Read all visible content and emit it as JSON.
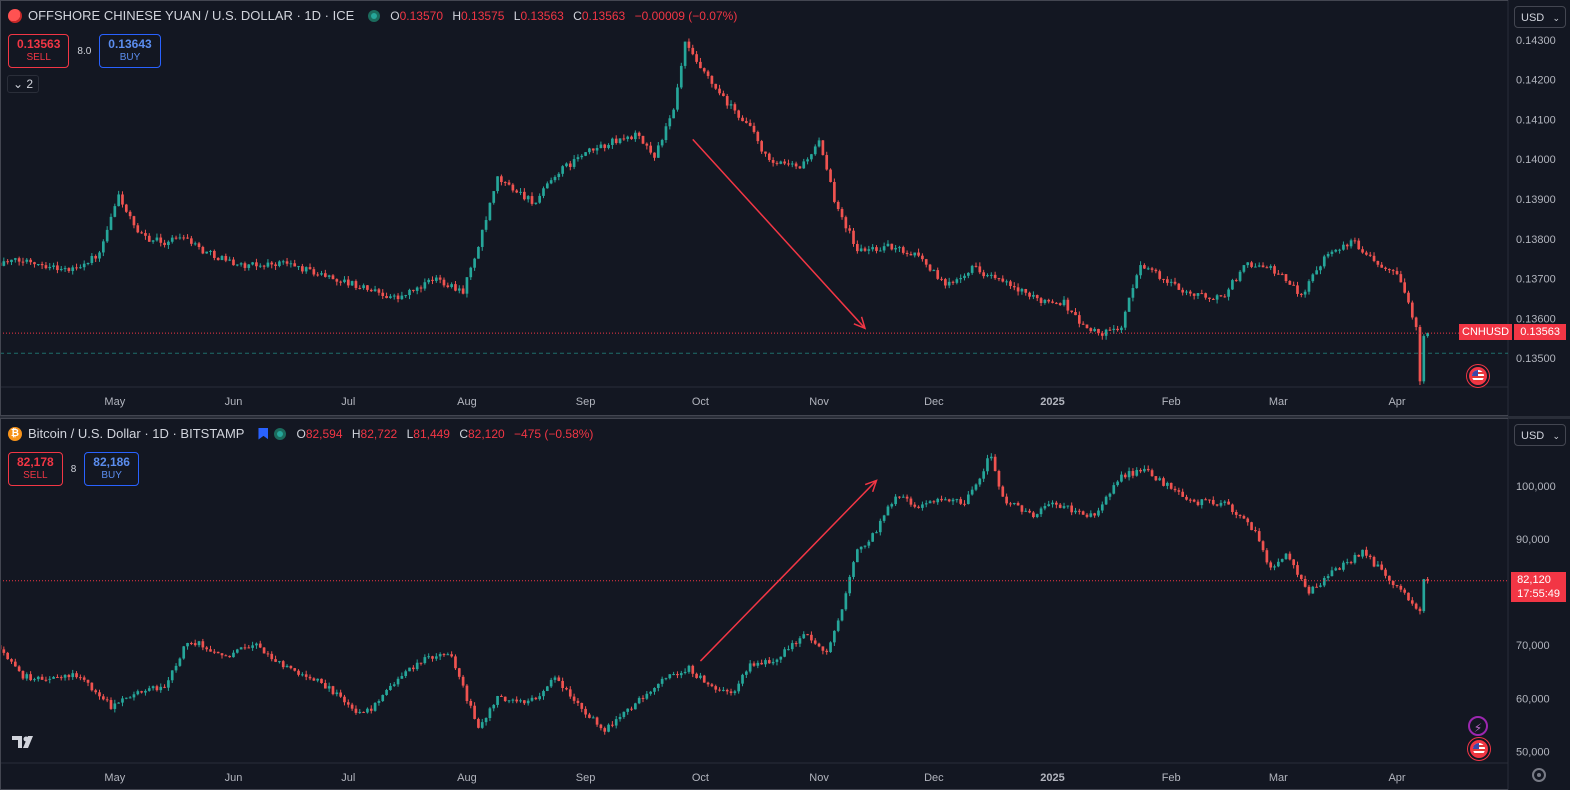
{
  "top": {
    "title": "OFFSHORE CHINESE YUAN / U.S. DOLLAR · 1D · ICE",
    "ohlc": {
      "o": "0.13570",
      "h": "0.13575",
      "l": "0.13563",
      "c": "0.13563",
      "chg": "−0.00009 (−0.07%)"
    },
    "sell_price": "0.13563",
    "sell_label": "SELL",
    "spread": "8.0",
    "buy_price": "0.13643",
    "buy_label": "BUY",
    "collapse_label": "⌄ 2",
    "currency": "USD",
    "symbol_tag": "CNHUSD",
    "last_price": "0.13563"
  },
  "bottom": {
    "title": "Bitcoin / U.S. Dollar · 1D · BITSTAMP",
    "ohlc": {
      "o": "82,594",
      "h": "82,722",
      "l": "81,449",
      "c": "82,120",
      "chg": "−475 (−0.58%)"
    },
    "sell_price": "82,178",
    "sell_label": "SELL",
    "spread": "8",
    "buy_price": "82,186",
    "buy_label": "BUY",
    "currency": "USD",
    "last_price": "82,120",
    "countdown": "17:55:49"
  },
  "colors": {
    "up": "#26a69a",
    "down": "#ef5350",
    "arrow": "#f23645",
    "bg": "#131722",
    "axis_text": "#b2b5be"
  },
  "chart_data": [
    {
      "type": "candlestick",
      "symbol": "CNHUSD",
      "x_tick_labels": [
        "May",
        "Jun",
        "Jul",
        "Aug",
        "Sep",
        "Oct",
        "Nov",
        "Dec",
        "2025",
        "Feb",
        "Mar",
        "Apr"
      ],
      "x_range": [
        "2024-04-01",
        "2025-04-30"
      ],
      "y_tick_labels": [
        "0.14300",
        "0.14200",
        "0.14100",
        "0.14000",
        "0.13900",
        "0.13800",
        "0.13700",
        "0.13600",
        "0.13500"
      ],
      "ylim": [
        0.1343,
        0.1437
      ],
      "last_price": 0.13563,
      "trend_arrow": {
        "from": [
          "2024-09-29",
          0.1405
        ],
        "to": [
          "2024-11-13",
          0.13575
        ],
        "direction": "down"
      },
      "path_points": [
        [
          "2024-04-01",
          0.1374
        ],
        [
          "2024-04-10",
          0.13745
        ],
        [
          "2024-04-20",
          0.1372
        ],
        [
          "2024-04-28",
          0.1376
        ],
        [
          "2024-05-03",
          0.1391
        ],
        [
          "2024-05-08",
          0.1381
        ],
        [
          "2024-05-15",
          0.1379
        ],
        [
          "2024-05-20",
          0.1381
        ],
        [
          "2024-05-25",
          0.1377
        ],
        [
          "2024-06-05",
          0.1373
        ],
        [
          "2024-06-15",
          0.1374
        ],
        [
          "2024-06-25",
          0.1371
        ],
        [
          "2024-07-05",
          0.1368
        ],
        [
          "2024-07-15",
          0.1365
        ],
        [
          "2024-07-25",
          0.137
        ],
        [
          "2024-08-01",
          0.1367
        ],
        [
          "2024-08-05",
          0.1378
        ],
        [
          "2024-08-10",
          0.1395
        ],
        [
          "2024-08-15",
          0.1392
        ],
        [
          "2024-08-20",
          0.1389
        ],
        [
          "2024-08-25",
          0.1396
        ],
        [
          "2024-09-01",
          0.1401
        ],
        [
          "2024-09-08",
          0.1404
        ],
        [
          "2024-09-15",
          0.1406
        ],
        [
          "2024-09-20",
          0.1401
        ],
        [
          "2024-09-25",
          0.1412
        ],
        [
          "2024-09-28",
          0.1429
        ],
        [
          "2024-10-01",
          0.1424
        ],
        [
          "2024-10-08",
          0.1415
        ],
        [
          "2024-10-15",
          0.1408
        ],
        [
          "2024-10-20",
          0.1399
        ],
        [
          "2024-10-28",
          0.1398
        ],
        [
          "2024-11-02",
          0.1404
        ],
        [
          "2024-11-06",
          0.139
        ],
        [
          "2024-11-12",
          0.1377
        ],
        [
          "2024-11-20",
          0.1378
        ],
        [
          "2024-11-28",
          0.1376
        ],
        [
          "2024-12-05",
          0.1368
        ],
        [
          "2024-12-12",
          0.1373
        ],
        [
          "2024-12-20",
          0.1369
        ],
        [
          "2024-12-28",
          0.1365
        ],
        [
          "2025-01-05",
          0.1364
        ],
        [
          "2025-01-10",
          0.1358
        ],
        [
          "2025-01-15",
          0.1356
        ],
        [
          "2025-01-20",
          0.1358
        ],
        [
          "2025-01-25",
          0.1374
        ],
        [
          "2025-02-01",
          0.1369
        ],
        [
          "2025-02-08",
          0.1366
        ],
        [
          "2025-02-15",
          0.1365
        ],
        [
          "2025-02-22",
          0.1374
        ],
        [
          "2025-03-01",
          0.1372
        ],
        [
          "2025-03-08",
          0.1366
        ],
        [
          "2025-03-15",
          0.1377
        ],
        [
          "2025-03-22",
          0.1379
        ],
        [
          "2025-03-28",
          0.1374
        ],
        [
          "2025-04-02",
          0.1372
        ],
        [
          "2025-04-05",
          0.1364
        ],
        [
          "2025-04-07",
          0.1357
        ],
        [
          "2025-04-08",
          0.1345
        ],
        [
          "2025-04-09",
          0.13563
        ]
      ]
    },
    {
      "type": "candlestick",
      "symbol": "BTCUSD",
      "x_tick_labels": [
        "May",
        "Jun",
        "Jul",
        "Aug",
        "Sep",
        "Oct",
        "Nov",
        "Dec",
        "2025",
        "Feb",
        "Mar",
        "Apr"
      ],
      "x_range": [
        "2024-04-01",
        "2025-04-30"
      ],
      "y_tick_labels": [
        "100,000",
        "90,000",
        "80,000",
        "70,000",
        "60,000",
        "50,000"
      ],
      "ylim": [
        48000,
        112000
      ],
      "last_price": 82120,
      "trend_arrow": {
        "from": [
          "2024-10-01",
          67000
        ],
        "to": [
          "2024-11-16",
          101000
        ],
        "direction": "up"
      },
      "path_points": [
        [
          "2024-04-01",
          70000
        ],
        [
          "2024-04-08",
          64000
        ],
        [
          "2024-04-15",
          63500
        ],
        [
          "2024-04-22",
          64500
        ],
        [
          "2024-05-01",
          58500
        ],
        [
          "2024-05-08",
          61500
        ],
        [
          "2024-05-15",
          62000
        ],
        [
          "2024-05-21",
          71000
        ],
        [
          "2024-06-01",
          68000
        ],
        [
          "2024-06-07",
          70500
        ],
        [
          "2024-06-15",
          66000
        ],
        [
          "2024-06-25",
          63000
        ],
        [
          "2024-07-05",
          57000
        ],
        [
          "2024-07-10",
          59000
        ],
        [
          "2024-07-15",
          64000
        ],
        [
          "2024-07-22",
          67500
        ],
        [
          "2024-07-29",
          68000
        ],
        [
          "2024-08-05",
          54000
        ],
        [
          "2024-08-10",
          60000
        ],
        [
          "2024-08-18",
          59000
        ],
        [
          "2024-08-25",
          63500
        ],
        [
          "2024-09-01",
          58000
        ],
        [
          "2024-09-07",
          54000
        ],
        [
          "2024-09-15",
          59000
        ],
        [
          "2024-09-22",
          63500
        ],
        [
          "2024-09-29",
          65500
        ],
        [
          "2024-10-05",
          62000
        ],
        [
          "2024-10-10",
          60500
        ],
        [
          "2024-10-15",
          66000
        ],
        [
          "2024-10-22",
          67500
        ],
        [
          "2024-10-29",
          72000
        ],
        [
          "2024-11-04",
          68500
        ],
        [
          "2024-11-08",
          76500
        ],
        [
          "2024-11-12",
          88000
        ],
        [
          "2024-11-16",
          90500
        ],
        [
          "2024-11-22",
          98000
        ],
        [
          "2024-11-28",
          96000
        ],
        [
          "2024-12-05",
          97500
        ],
        [
          "2024-12-10",
          96500
        ],
        [
          "2024-12-17",
          106000
        ],
        [
          "2024-12-20",
          97500
        ],
        [
          "2024-12-28",
          94000
        ],
        [
          "2025-01-02",
          97000
        ],
        [
          "2025-01-08",
          95000
        ],
        [
          "2025-01-13",
          94500
        ],
        [
          "2025-01-20",
          102000
        ],
        [
          "2025-01-26",
          103000
        ],
        [
          "2025-02-01",
          100000
        ],
        [
          "2025-02-08",
          97000
        ],
        [
          "2025-02-16",
          96500
        ],
        [
          "2025-02-24",
          91500
        ],
        [
          "2025-02-28",
          84000
        ],
        [
          "2025-03-04",
          87000
        ],
        [
          "2025-03-10",
          80000
        ],
        [
          "2025-03-16",
          83500
        ],
        [
          "2025-03-24",
          87500
        ],
        [
          "2025-03-31",
          82500
        ],
        [
          "2025-04-06",
          78000
        ],
        [
          "2025-04-08",
          76500
        ],
        [
          "2025-04-09",
          82120
        ]
      ]
    }
  ]
}
